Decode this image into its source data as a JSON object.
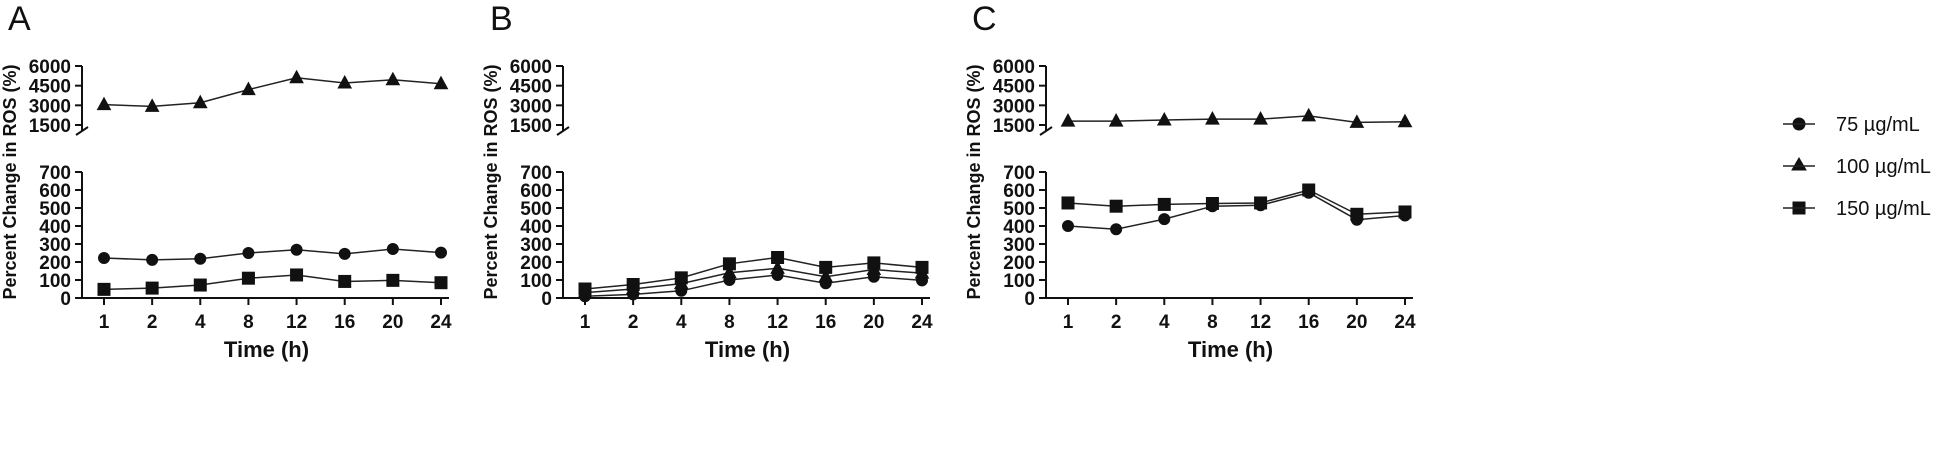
{
  "legend": {
    "items": [
      {
        "label": "75 µg/mL",
        "marker": "circle"
      },
      {
        "label": "100 µg/mL",
        "marker": "triangle"
      },
      {
        "label": "150 µg/mL",
        "marker": "square"
      }
    ]
  },
  "chart_data": [
    {
      "type": "line",
      "panel_label": "A",
      "xlabel": "Time (h)",
      "ylabel": "Percent Change in ROS (%)",
      "categories": [
        "1",
        "2",
        "4",
        "8",
        "12",
        "16",
        "20",
        "24"
      ],
      "y_axis_broken": true,
      "upper_ylim": [
        1500,
        6000
      ],
      "upper_yticks": [
        1500,
        3000,
        4500,
        6000
      ],
      "lower_ylim": [
        0,
        700
      ],
      "lower_yticks": [
        0,
        100,
        200,
        300,
        400,
        500,
        600,
        700
      ],
      "series": [
        {
          "name": "75 µg/mL",
          "marker": "circle",
          "values": [
            222,
            212,
            218,
            250,
            268,
            245,
            272,
            252
          ],
          "error": [
            0,
            0,
            0,
            0,
            0,
            0,
            0,
            0
          ]
        },
        {
          "name": "100 µg/mL",
          "marker": "triangle",
          "values": [
            3050,
            2920,
            3200,
            4200,
            5100,
            4700,
            4950,
            4650
          ],
          "error": [
            0,
            0,
            0,
            0,
            0,
            0,
            0,
            0
          ]
        },
        {
          "name": "150 µg/mL",
          "marker": "square",
          "values": [
            48,
            55,
            72,
            110,
            128,
            92,
            98,
            85
          ],
          "error": [
            14,
            10,
            8,
            12,
            12,
            10,
            10,
            10
          ]
        }
      ]
    },
    {
      "type": "line",
      "panel_label": "B",
      "xlabel": "Time (h)",
      "ylabel": "Percent Change in ROS (%)",
      "categories": [
        "1",
        "2",
        "4",
        "8",
        "12",
        "16",
        "20",
        "24"
      ],
      "y_axis_broken": true,
      "upper_ylim": [
        1500,
        6000
      ],
      "upper_yticks": [
        1500,
        3000,
        4500,
        6000
      ],
      "lower_ylim": [
        0,
        700
      ],
      "lower_yticks": [
        0,
        100,
        200,
        300,
        400,
        500,
        600,
        700
      ],
      "series": [
        {
          "name": "75 µg/mL",
          "marker": "circle",
          "values": [
            10,
            20,
            40,
            100,
            128,
            82,
            118,
            98
          ],
          "error": [
            0,
            0,
            0,
            0,
            0,
            0,
            0,
            0
          ]
        },
        {
          "name": "100 µg/mL",
          "marker": "triangle",
          "values": [
            30,
            50,
            80,
            140,
            165,
            118,
            158,
            138
          ],
          "error": [
            0,
            0,
            0,
            0,
            0,
            0,
            0,
            0
          ]
        },
        {
          "name": "150 µg/mL",
          "marker": "square",
          "values": [
            50,
            75,
            112,
            190,
            225,
            170,
            195,
            170
          ],
          "error": [
            0,
            0,
            0,
            0,
            0,
            0,
            0,
            0
          ]
        }
      ]
    },
    {
      "type": "line",
      "panel_label": "C",
      "xlabel": "Time (h)",
      "ylabel": "Percent Change in ROS (%)",
      "categories": [
        "1",
        "2",
        "4",
        "8",
        "12",
        "16",
        "20",
        "24"
      ],
      "y_axis_broken": true,
      "upper_ylim": [
        1500,
        6000
      ],
      "upper_yticks": [
        1500,
        3000,
        4500,
        6000
      ],
      "lower_ylim": [
        0,
        700
      ],
      "lower_yticks": [
        0,
        100,
        200,
        300,
        400,
        500,
        600,
        700
      ],
      "series": [
        {
          "name": "75 µg/mL",
          "marker": "circle",
          "values": [
            400,
            382,
            438,
            510,
            515,
            585,
            435,
            458
          ],
          "error": [
            10,
            10,
            12,
            12,
            10,
            12,
            12,
            12
          ]
        },
        {
          "name": "100 µg/mL",
          "marker": "triangle",
          "values": [
            1800,
            1800,
            1880,
            1950,
            1950,
            2200,
            1700,
            1750
          ],
          "error": [
            0,
            0,
            0,
            0,
            0,
            0,
            0,
            0
          ]
        },
        {
          "name": "150 µg/mL",
          "marker": "square",
          "values": [
            528,
            510,
            520,
            525,
            528,
            600,
            465,
            478
          ],
          "error": [
            20,
            20,
            18,
            18,
            20,
            15,
            20,
            20
          ]
        }
      ]
    }
  ]
}
